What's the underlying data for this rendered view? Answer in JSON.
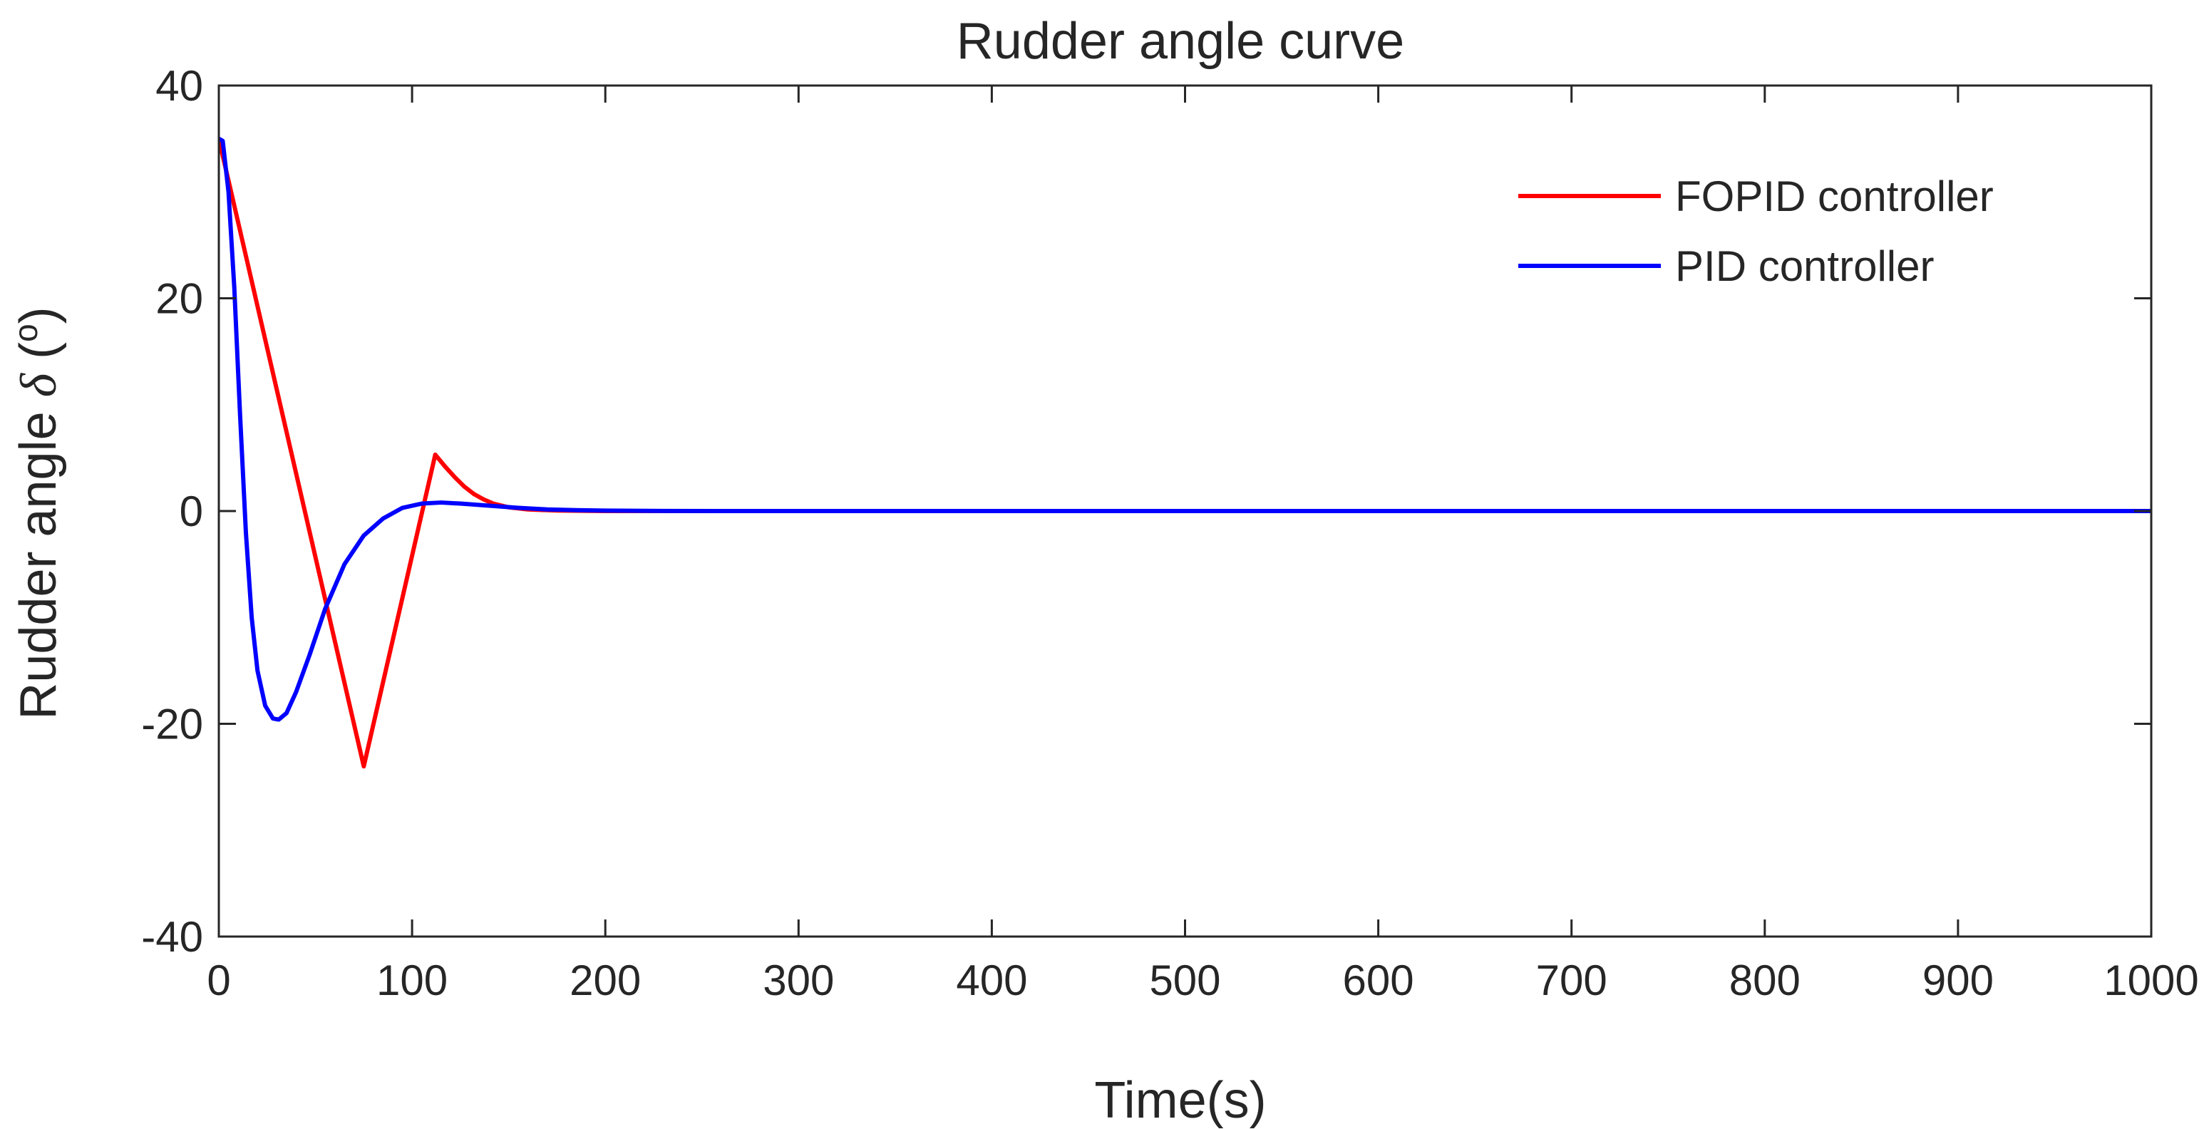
{
  "chart_data": {
    "type": "line",
    "title": "Rudder angle curve",
    "xlabel": "Time(s)",
    "ylabel": {
      "prefix": "Rudder angle ",
      "symbol": "δ",
      "open_paren": " (",
      "unit": "o",
      "close_paren": ")"
    },
    "xlim": [
      0,
      1000
    ],
    "ylim": [
      -40,
      40
    ],
    "x_ticks": [
      0,
      100,
      200,
      300,
      400,
      500,
      600,
      700,
      800,
      900,
      1000
    ],
    "x_tick_labels": [
      "0",
      "100",
      "200",
      "300",
      "400",
      "500",
      "600",
      "700",
      "800",
      "900",
      "1000"
    ],
    "y_ticks": [
      -40,
      -20,
      0,
      20,
      40
    ],
    "y_tick_labels": [
      "-40",
      "-20",
      "0",
      "20",
      "40"
    ],
    "grid": false,
    "legend_position": "top-right",
    "series": [
      {
        "name": "FOPID controller",
        "color": "#ff0000",
        "x": [
          0,
          75,
          112,
          117,
          122,
          127,
          132,
          137,
          142,
          150,
          160,
          175,
          200,
          250,
          300,
          400,
          500,
          600,
          700,
          800,
          900,
          1000
        ],
        "y": [
          35,
          -24,
          5.3,
          4.2,
          3.2,
          2.3,
          1.6,
          1.1,
          0.7,
          0.35,
          0.15,
          0.05,
          0,
          0,
          0,
          0,
          0,
          0,
          0,
          0,
          0,
          0
        ]
      },
      {
        "name": "PID controller",
        "color": "#0000ff",
        "x": [
          0,
          2,
          5,
          8,
          11,
          14,
          17,
          20,
          24,
          28,
          31,
          35,
          40,
          47,
          55,
          65,
          75,
          85,
          95,
          105,
          115,
          125,
          140,
          155,
          170,
          185,
          200,
          230,
          260,
          300,
          400,
          500,
          600,
          700,
          800,
          900,
          1000
        ],
        "y": [
          35,
          34.8,
          30,
          21,
          9,
          -2,
          -10,
          -15,
          -18.3,
          -19.5,
          -19.6,
          -19,
          -17,
          -13.5,
          -9.2,
          -5,
          -2.3,
          -0.7,
          0.3,
          0.7,
          0.8,
          0.7,
          0.5,
          0.3,
          0.15,
          0.08,
          0.04,
          0.01,
          0,
          0,
          0,
          0,
          0,
          0,
          0,
          0,
          0
        ]
      }
    ]
  }
}
